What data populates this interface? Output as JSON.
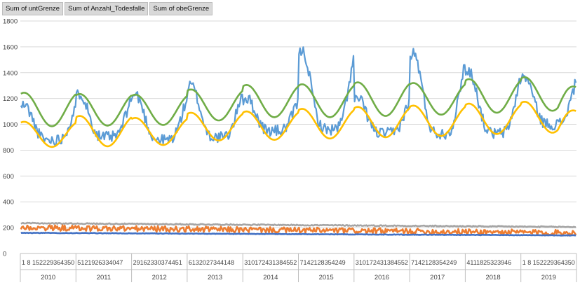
{
  "field_buttons": [
    "Sum of untGrenze",
    "Sum of Anzahl_Todesfalle",
    "Sum of obeGrenze"
  ],
  "chart_data": {
    "type": "line",
    "title": "",
    "xlabel": "",
    "ylabel": "",
    "ylim": [
      0,
      1800
    ],
    "yticks": [
      0,
      200,
      400,
      600,
      800,
      1000,
      1200,
      1400,
      1600,
      1800
    ],
    "gridlines": true,
    "legend": "none",
    "years": [
      "2010",
      "2011",
      "2012",
      "2013",
      "2014",
      "2015",
      "2016",
      "2017",
      "2018",
      "2019"
    ],
    "week_tick_labels": [
      [
        "1",
        "8",
        "15",
        "22",
        "29",
        "36",
        "43",
        "50"
      ],
      [
        "5",
        "12",
        "19",
        "26",
        "33",
        "40",
        "47"
      ],
      [
        "2",
        "9",
        "16",
        "23",
        "30",
        "37",
        "44",
        "51"
      ],
      [
        "6",
        "13",
        "20",
        "27",
        "34",
        "41",
        "48"
      ],
      [
        "3",
        "10",
        "17",
        "24",
        "31",
        "38",
        "45",
        "52"
      ],
      [
        "7",
        "14",
        "21",
        "28",
        "35",
        "42",
        "49"
      ],
      [
        "3",
        "10",
        "17",
        "24",
        "31",
        "38",
        "45",
        "52"
      ],
      [
        "7",
        "14",
        "21",
        "28",
        "35",
        "42",
        "49"
      ],
      [
        "4",
        "11",
        "18",
        "25",
        "32",
        "39",
        "46"
      ],
      [
        "1",
        "8",
        "15",
        "22",
        "29",
        "36",
        "43",
        "50"
      ]
    ],
    "series": [
      {
        "color": "#5b9bd5",
        "yearly": [
          {
            "winter_peak": 1150,
            "summer_low": 880
          },
          {
            "winter_peak": 1240,
            "summer_low": 900
          },
          {
            "winter_peak": 1230,
            "summer_low": 880
          },
          {
            "winter_peak": 1300,
            "summer_low": 900
          },
          {
            "winter_peak": 1200,
            "summer_low": 950
          },
          {
            "winter_peak": 1570,
            "summer_low": 960
          },
          {
            "winter_peak": 1200,
            "summer_low": 930
          },
          {
            "winter_peak": 1550,
            "summer_low": 930
          },
          {
            "winter_peak": 1410,
            "summer_low": 930
          },
          {
            "winter_peak": 1370,
            "summer_low": 1000
          }
        ]
      },
      {
        "color": "#70ad47",
        "yearly": [
          {
            "winter_peak": 1245,
            "summer_low": 985
          },
          {
            "winter_peak": 1235,
            "summer_low": 990
          },
          {
            "winter_peak": 1230,
            "summer_low": 995
          },
          {
            "winter_peak": 1270,
            "summer_low": 1030
          },
          {
            "winter_peak": 1305,
            "summer_low": 1055
          },
          {
            "winter_peak": 1310,
            "summer_low": 1055
          },
          {
            "winter_peak": 1325,
            "summer_low": 1065
          },
          {
            "winter_peak": 1320,
            "summer_low": 1075
          },
          {
            "winter_peak": 1350,
            "summer_low": 1090
          },
          {
            "winter_peak": 1365,
            "summer_low": 1105
          }
        ],
        "end_value": 1285
      },
      {
        "color": "#ffc000",
        "yearly": [
          {
            "winter_peak": 1020,
            "summer_low": 825
          },
          {
            "winter_peak": 1065,
            "summer_low": 830
          },
          {
            "winter_peak": 1050,
            "summer_low": 840
          },
          {
            "winter_peak": 1090,
            "summer_low": 875
          },
          {
            "winter_peak": 1100,
            "summer_low": 880
          },
          {
            "winter_peak": 1120,
            "summer_low": 890
          },
          {
            "winter_peak": 1135,
            "summer_low": 900
          },
          {
            "winter_peak": 1145,
            "summer_low": 910
          },
          {
            "winter_peak": 1160,
            "summer_low": 925
          },
          {
            "winter_peak": 1175,
            "summer_low": 935
          }
        ],
        "end_value": 1100
      },
      {
        "color": "#a5a5a5",
        "start": 235,
        "end": 205,
        "noise": 4
      },
      {
        "color": "#ed7d31",
        "start": 200,
        "end": 160,
        "noise": 22
      },
      {
        "color": "#4472c4",
        "start": 160,
        "end": 140,
        "noise": 2
      }
    ]
  }
}
